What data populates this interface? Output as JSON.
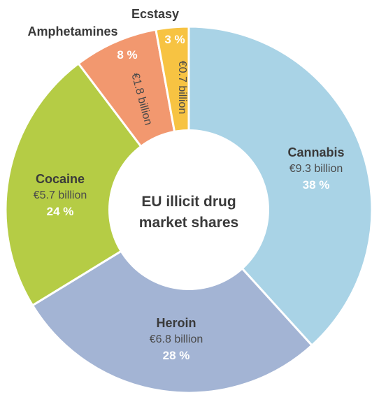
{
  "chart_data": {
    "type": "pie",
    "donut": true,
    "title_lines": [
      "EU illicit drug",
      "market shares"
    ],
    "slices": [
      {
        "name": "Cannabis",
        "value_label": "€9.3 billion",
        "value": 9.3,
        "percent": 38,
        "percent_label": "38 %",
        "color": "#a9d3e6"
      },
      {
        "name": "Heroin",
        "value_label": "€6.8 billion",
        "value": 6.8,
        "percent": 28,
        "percent_label": "28 %",
        "color": "#a3b4d4"
      },
      {
        "name": "Cocaine",
        "value_label": "€5.7 billion",
        "value": 5.7,
        "percent": 24,
        "percent_label": "24 %",
        "color": "#b5cc45"
      },
      {
        "name": "Amphetamines",
        "value_label": "€1.8 billion",
        "value": 1.8,
        "percent": 8,
        "percent_label": "8 %",
        "color": "#f2986f"
      },
      {
        "name": "Ecstasy",
        "value_label": "€0.7 billion",
        "value": 0.7,
        "percent": 3,
        "percent_label": "3 %",
        "color": "#f7c342"
      }
    ]
  }
}
